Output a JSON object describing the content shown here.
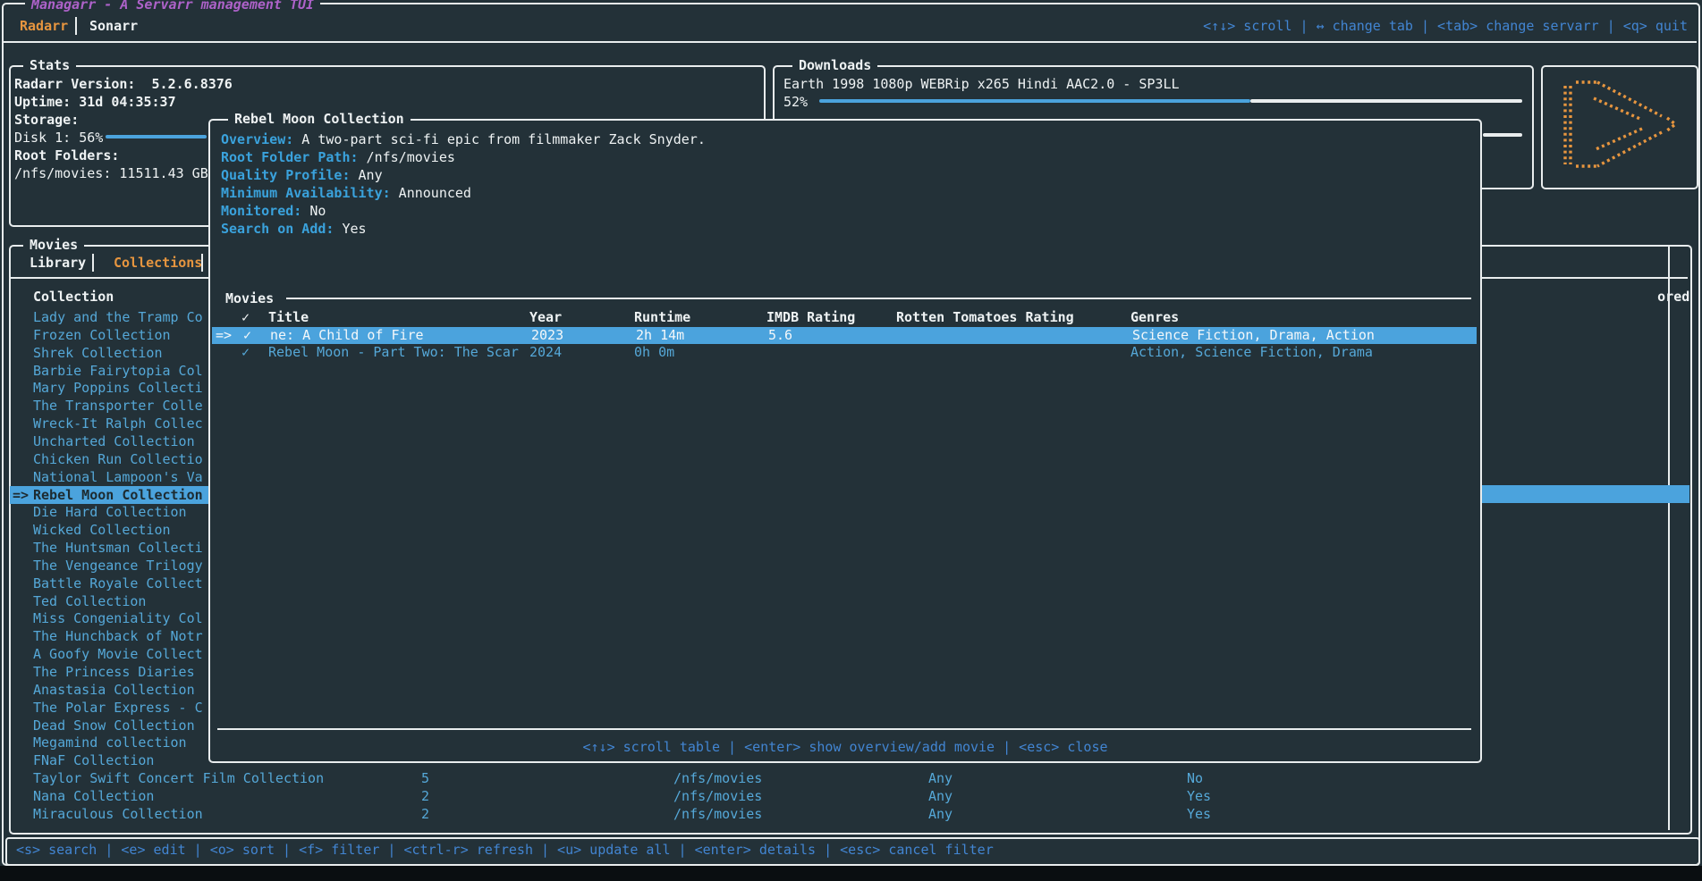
{
  "app": {
    "title": "Managarr - A Servarr management TUI",
    "tabs": [
      {
        "label": "Radarr"
      },
      {
        "label": "Sonarr"
      }
    ],
    "header_keybinds": "<↑↓> scroll | ↔ change tab | <tab> change servarr | <q> quit",
    "footer_keybinds": "<s> search | <e> edit | <o> sort | <f> filter | <ctrl-r> refresh | <u> update all | <enter> details | <esc> cancel filter"
  },
  "stats": {
    "title": "Stats",
    "version": "Radarr Version:  5.2.6.8376",
    "uptime": "Uptime: 31d 04:35:37",
    "storage_label": "Storage:",
    "disk_label": "Disk 1: 56%",
    "disk_percent": 56,
    "root_folders_label": "Root Folders:",
    "root_folder": "/nfs/movies: 11511.43 GB"
  },
  "downloads": {
    "title": "Downloads",
    "item": "Earth 1998 1080p WEBRip x265 Hindi AAC2.0 - SP3LL",
    "percent_label": "52%",
    "percent": 52
  },
  "movies_panel": {
    "title": "Movies",
    "tabs": [
      {
        "label": "Library"
      },
      {
        "label": "Collections"
      }
    ],
    "table_header": "Collection",
    "right_table_header": "Monitored",
    "items": [
      {
        "name": "Lady and the Tramp Co"
      },
      {
        "name": "Frozen Collection"
      },
      {
        "name": "Shrek Collection"
      },
      {
        "name": "Barbie Fairytopia Col"
      },
      {
        "name": "Mary Poppins Collecti"
      },
      {
        "name": "The Transporter Colle"
      },
      {
        "name": "Wreck-It Ralph Collec"
      },
      {
        "name": "Uncharted Collection"
      },
      {
        "name": "Chicken Run Collectio"
      },
      {
        "name": "National Lampoon's Va"
      },
      {
        "name": "Rebel Moon Collection",
        "selected": true
      },
      {
        "name": "Die Hard Collection"
      },
      {
        "name": "Wicked Collection"
      },
      {
        "name": "The Huntsman Collecti"
      },
      {
        "name": "The Vengeance Trilogy"
      },
      {
        "name": "Battle Royale Collect"
      },
      {
        "name": "Ted Collection"
      },
      {
        "name": "Miss Congeniality Col"
      },
      {
        "name": "The Hunchback of Notr"
      },
      {
        "name": "A Goofy Movie Collect"
      },
      {
        "name": "The Princess Diaries"
      },
      {
        "name": "Anastasia Collection"
      },
      {
        "name": "The Polar Express - C"
      },
      {
        "name": "Dead Snow Collection"
      },
      {
        "name": "Megamind collection"
      },
      {
        "name": "FNaF Collection"
      },
      {
        "name": "Taylor Swift Concert Film Collection",
        "count": "5",
        "path": "/nfs/movies",
        "quality": "Any",
        "monitored": "No"
      },
      {
        "name": "Nana Collection",
        "count": "2",
        "path": "/nfs/movies",
        "quality": "Any",
        "monitored": "Yes"
      },
      {
        "name": "Miraculous Collection",
        "count": "2",
        "path": "/nfs/movies",
        "quality": "Any",
        "monitored": "Yes"
      }
    ]
  },
  "modal": {
    "title": "Rebel Moon Collection",
    "fields": [
      {
        "label": "Overview:",
        "value": " A two-part sci-fi epic from filmmaker Zack Snyder."
      },
      {
        "label": "Root Folder Path:",
        "value": " /nfs/movies"
      },
      {
        "label": "Quality Profile:",
        "value": " Any"
      },
      {
        "label": "Minimum Availability:",
        "value": " Announced"
      },
      {
        "label": "Monitored:",
        "value": " No"
      },
      {
        "label": "Search on Add:",
        "value": " Yes"
      }
    ],
    "section_title": "Movies",
    "table": {
      "headers": [
        "✓",
        "Title",
        "Year",
        "Runtime",
        "IMDB Rating",
        "Rotten Tomatoes Rating",
        "Genres"
      ],
      "rows": [
        {
          "selected": true,
          "arrow": "=>",
          "check": "✓",
          "title": "ne: A Child of Fire",
          "year": "2023",
          "runtime": "2h 14m",
          "imdb": "5.6",
          "rt": "",
          "genres": "Science Fiction, Drama, Action"
        },
        {
          "selected": false,
          "arrow": "",
          "check": "✓",
          "title": "Rebel Moon - Part Two: The Scar",
          "year": "2024",
          "runtime": "0h 0m",
          "imdb": "",
          "rt": "",
          "genres": "Action, Science Fiction, Drama"
        }
      ]
    },
    "footer_keybinds": "<↑↓> scroll table | <enter> show overview/add movie | <esc> close"
  },
  "colors": {
    "accent_orange": "#e6953f",
    "accent_blue": "#55a8d8",
    "keybind_blue": "#4285d2",
    "highlight_blue": "#4ba3dd",
    "title_purple": "#ad62c9"
  }
}
